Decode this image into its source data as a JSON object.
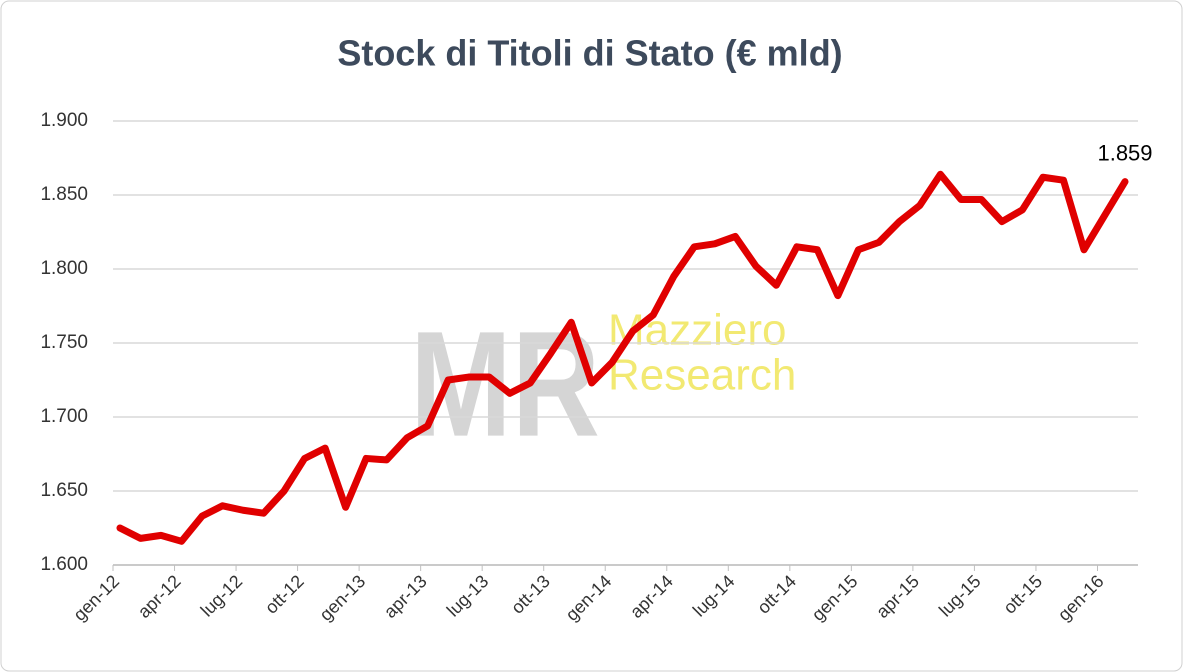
{
  "chart_data": {
    "type": "line",
    "title": "Stock di Titoli di Stato (€ mld)",
    "watermark": {
      "logo": "MR",
      "lines": [
        "Mazziero",
        "Research"
      ]
    },
    "categories": [
      "gen-12",
      null,
      null,
      "apr-12",
      null,
      null,
      "lug-12",
      null,
      null,
      "ott-12",
      null,
      null,
      "gen-13",
      null,
      null,
      "apr-13",
      null,
      null,
      "lug-13",
      null,
      null,
      "ott-13",
      null,
      null,
      "gen-14",
      null,
      null,
      "apr-14",
      null,
      null,
      "lug-14",
      null,
      null,
      "ott-14",
      null,
      null,
      "gen-15",
      null,
      null,
      "apr-15",
      null,
      null,
      "lug-15",
      null,
      null,
      "ott-15",
      null,
      null,
      "gen-16",
      null
    ],
    "series": [
      {
        "name": "Stock",
        "color": "#e00000",
        "values": [
          1625,
          1618,
          1620,
          1616,
          1633,
          1640,
          1637,
          1635,
          1650,
          1672,
          1679,
          1639,
          1672,
          1671,
          1686,
          1694,
          1725,
          1727,
          1727,
          1716,
          1723,
          1743,
          1764,
          1723,
          1737,
          1758,
          1769,
          1795,
          1815,
          1817,
          1822,
          1802,
          1789,
          1815,
          1813,
          1782,
          1813,
          1818,
          1832,
          1843,
          1864,
          1847,
          1847,
          1832,
          1840,
          1862,
          1860,
          1813,
          1836,
          1859
        ],
        "value_labels": [
          null,
          null,
          null,
          null,
          null,
          null,
          null,
          null,
          null,
          null,
          null,
          null,
          null,
          null,
          null,
          null,
          null,
          null,
          null,
          null,
          null,
          null,
          null,
          null,
          null,
          null,
          null,
          null,
          null,
          null,
          null,
          null,
          null,
          null,
          null,
          null,
          null,
          null,
          null,
          null,
          null,
          null,
          null,
          null,
          null,
          null,
          null,
          null,
          null,
          "1.859"
        ]
      }
    ],
    "ylim": [
      1600,
      1900
    ],
    "yticks": [
      {
        "value": 1600,
        "label": "1.600"
      },
      {
        "value": 1650,
        "label": "1.650"
      },
      {
        "value": 1700,
        "label": "1.700"
      },
      {
        "value": 1750,
        "label": "1.750"
      },
      {
        "value": 1800,
        "label": "1.800"
      },
      {
        "value": 1850,
        "label": "1.850"
      },
      {
        "value": 1900,
        "label": "1.900"
      }
    ],
    "grid": true
  }
}
